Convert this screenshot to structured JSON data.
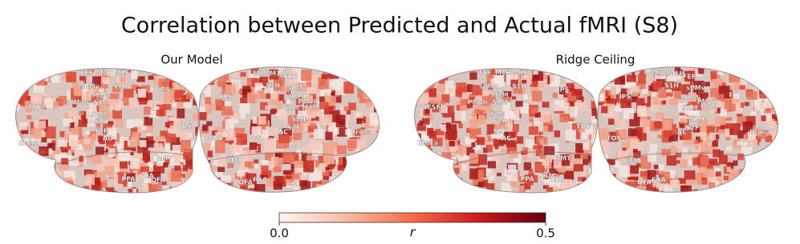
{
  "title": "Correlation between Predicted and Actual fMRI (S8)",
  "panels": [
    {
      "title": "Our Model",
      "regions": [
        "FEF",
        "M1H",
        "M1F",
        "sPMv",
        "S1H",
        "IFSFP",
        "PMvh",
        "M1M",
        "S1M",
        "S2M",
        "S2H",
        "S2F",
        "Broca",
        "AC",
        "hMT",
        "IPS",
        "TOS",
        "PPA",
        "FBA",
        "OFA",
        "M1M",
        "M1H",
        "FEF",
        "sPMv",
        "S1H",
        "IPS",
        "S1M",
        "PMvh",
        "S2M",
        "M1M",
        "S2H",
        "S2F",
        "AC",
        "Broca",
        "TOS",
        "hMT",
        "OFA",
        "FBA"
      ]
    },
    {
      "title": "Ridge Ceiling",
      "regions": [
        "FEF",
        "M1H",
        "M1F",
        "sPMv",
        "S1H",
        "IFSFP",
        "PMvh",
        "M1M",
        "S1M",
        "S2M",
        "S2H",
        "S2F",
        "Broca",
        "AC",
        "hMT",
        "IPS",
        "TOS",
        "PPA",
        "FBA",
        "OFA",
        "M1M",
        "M1H",
        "FEF",
        "sPMv",
        "S1H",
        "IPS",
        "S1M",
        "PMvh",
        "S2M",
        "M1M",
        "S2H",
        "S2F",
        "AC",
        "Broca",
        "TOS",
        "hMT",
        "OFA",
        "FBA"
      ]
    }
  ],
  "colorbar": {
    "label": "r",
    "lim": [
      0,
      0.5
    ],
    "ticks": [
      {
        "value": 0,
        "label": "0.0"
      },
      {
        "value": 0.5,
        "label": "0.5"
      }
    ],
    "colors": [
      "#fff5f0",
      "#fcbba1",
      "#fb6a4a",
      "#cb181d",
      "#67000d"
    ]
  }
}
